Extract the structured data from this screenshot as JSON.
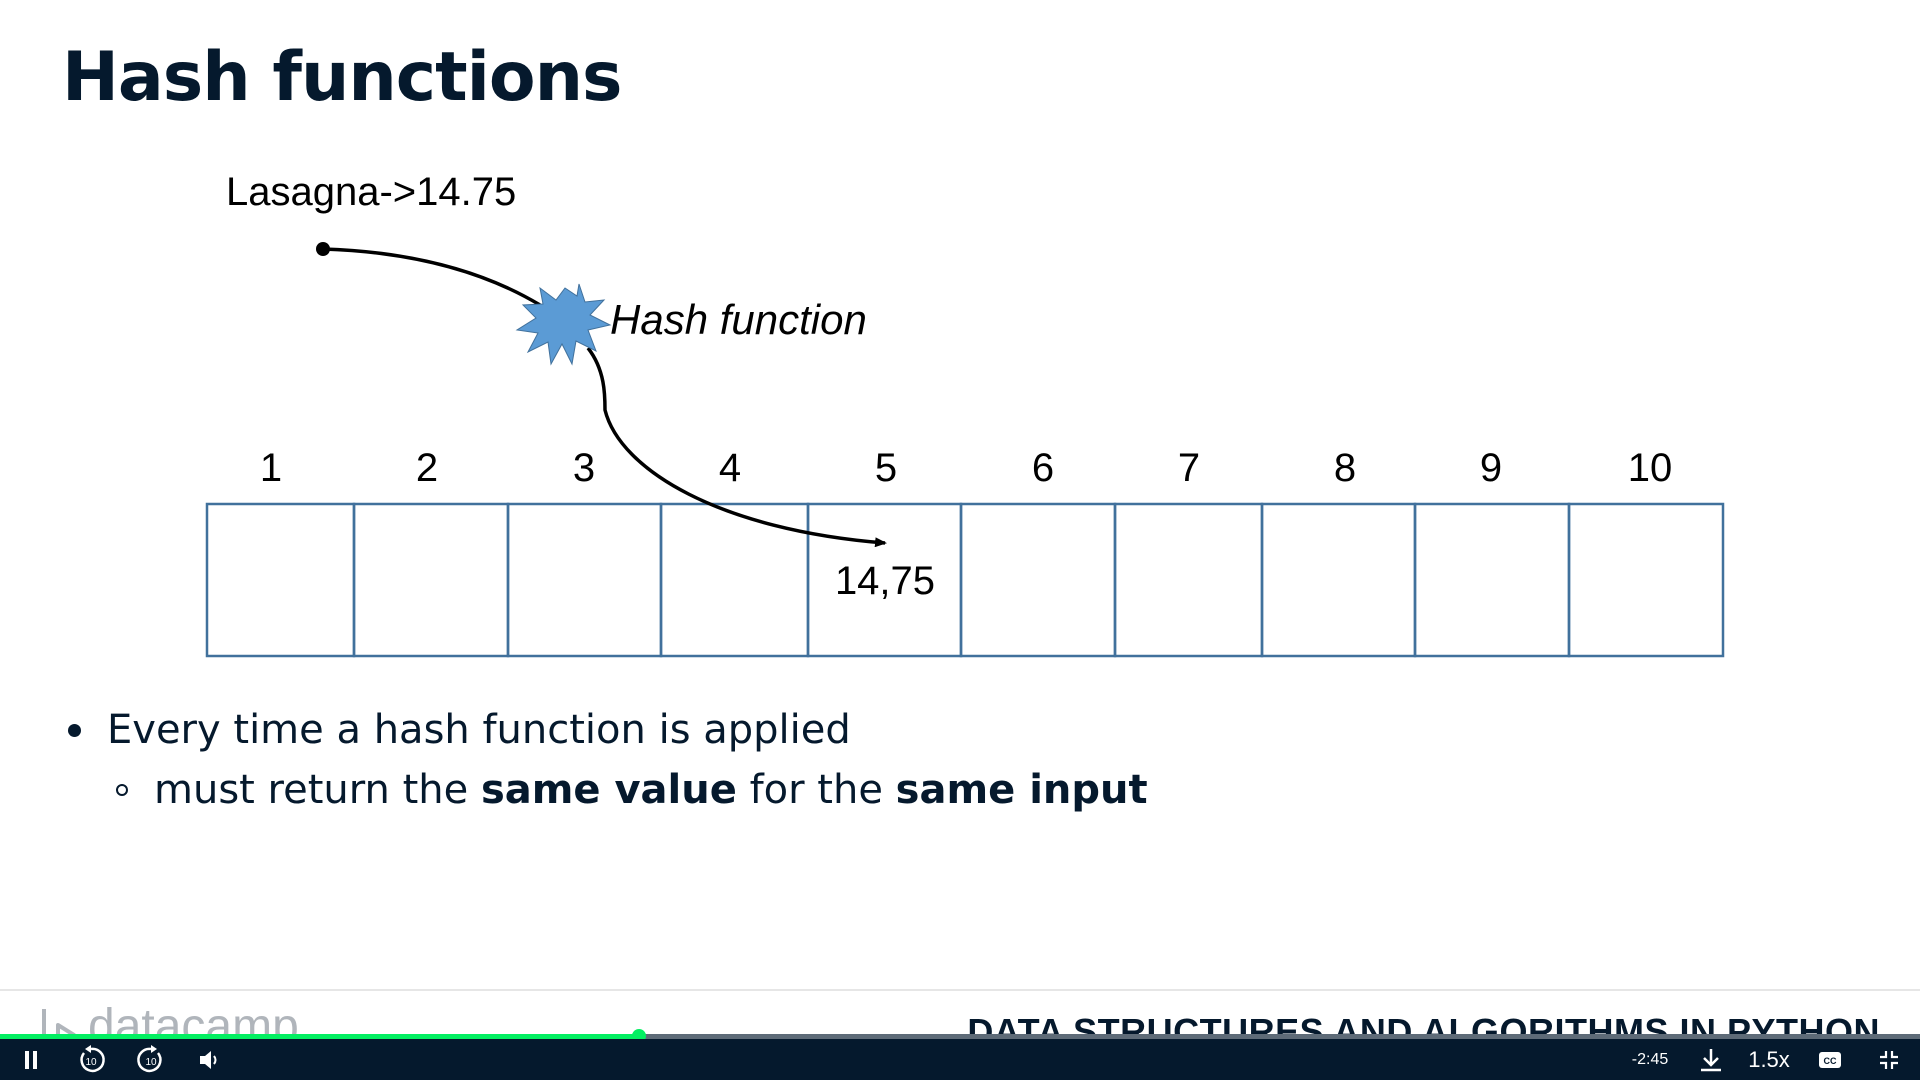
{
  "slide": {
    "title": "Hash functions",
    "diagram": {
      "input_label": "Lasagna->14.75",
      "function_label": "Hash function",
      "slots": [
        "1",
        "2",
        "3",
        "4",
        "5",
        "6",
        "7",
        "8",
        "9",
        "10"
      ],
      "stored_value": "14,75"
    },
    "bullets": {
      "main": "Every time a hash function is applied",
      "sub": {
        "p1": "must return the ",
        "b1": "same value",
        "p2": " for the ",
        "b2": "same input"
      }
    }
  },
  "footer": {
    "brand": "datacamp",
    "course_title": "DATA STRUCTURES AND ALGORITHMS IN PYTHON"
  },
  "player": {
    "progress": 0.333,
    "time_remaining": "-2:45",
    "speed": "1.5x",
    "rewind_seconds": "10",
    "forward_seconds": "10",
    "colors": {
      "progress": "#03ef62",
      "bar": "#05192d",
      "accent_blue": "#5b9bd5"
    },
    "icons": [
      "pause-icon",
      "rewind-10-icon",
      "forward-10-icon",
      "volume-icon",
      "download-icon",
      "captions-icon",
      "exit-fullscreen-icon"
    ]
  }
}
